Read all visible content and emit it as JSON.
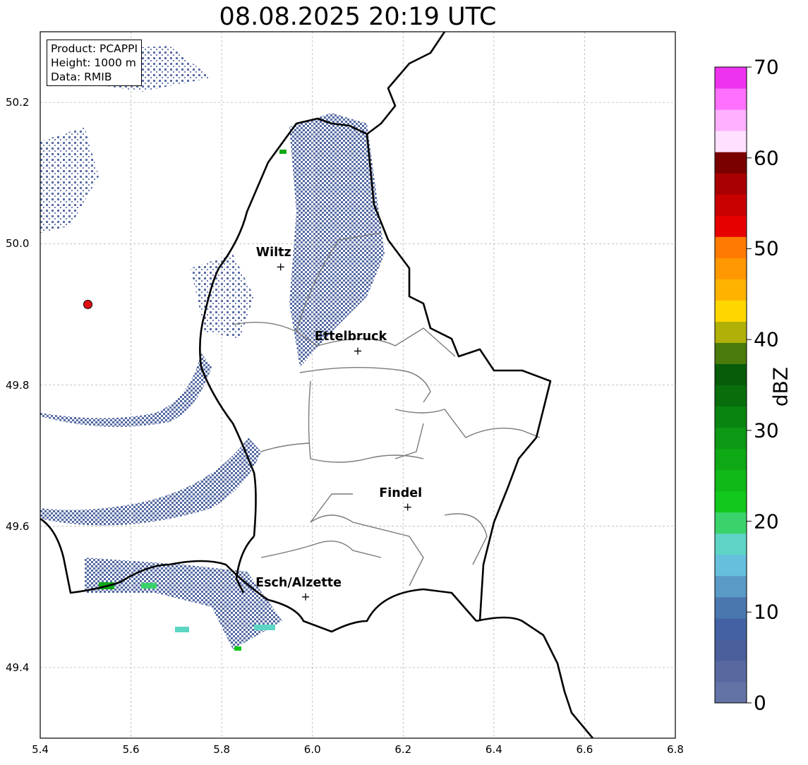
{
  "title": "08.08.2025 20:19 UTC",
  "info_box": {
    "product": "Product: PCAPPI",
    "height": "Height: 1000 m",
    "data": "Data: RMIB"
  },
  "axes": {
    "x_ticks": [
      "5.4",
      "5.6",
      "5.8",
      "6.0",
      "6.2",
      "6.4",
      "6.6",
      "6.8"
    ],
    "y_ticks": [
      "49.4",
      "49.6",
      "49.8",
      "50.0",
      "50.2"
    ],
    "x_range": [
      5.4,
      6.8
    ],
    "y_range": [
      49.3,
      50.3
    ],
    "grid": true
  },
  "colorbar": {
    "label": "dBZ",
    "ticks": [
      "0",
      "10",
      "20",
      "30",
      "40",
      "50",
      "60",
      "70"
    ],
    "range": [
      0,
      70
    ],
    "colors": [
      "#6473a6",
      "#5869a0",
      "#4b5f9d",
      "#4462a3",
      "#4a78ae",
      "#5a9ac6",
      "#66bfdc",
      "#5ed5c4",
      "#3ad36b",
      "#12c81c",
      "#10b818",
      "#0ea814",
      "#0c9812",
      "#0a8410",
      "#086e0c",
      "#075c09",
      "#4a7a0a",
      "#b0b008",
      "#ffd700",
      "#ffb300",
      "#ff9800",
      "#ff7a00",
      "#e60000",
      "#c80000",
      "#a80000",
      "#7a0000",
      "#ffe0ff",
      "#ffb0ff",
      "#ff70ff",
      "#ee33ee"
    ]
  },
  "cities": [
    {
      "name": "Wiltz",
      "lon": 5.93,
      "lat": 49.967
    },
    {
      "name": "Ettelbruck",
      "lon": 6.1,
      "lat": 49.848
    },
    {
      "name": "Findel",
      "lon": 6.21,
      "lat": 49.627
    },
    {
      "name": "Esch/Alzette",
      "lon": 5.985,
      "lat": 49.5
    }
  ],
  "radar_site": {
    "lon": 5.505,
    "lat": 49.914,
    "color": "#e01010"
  }
}
